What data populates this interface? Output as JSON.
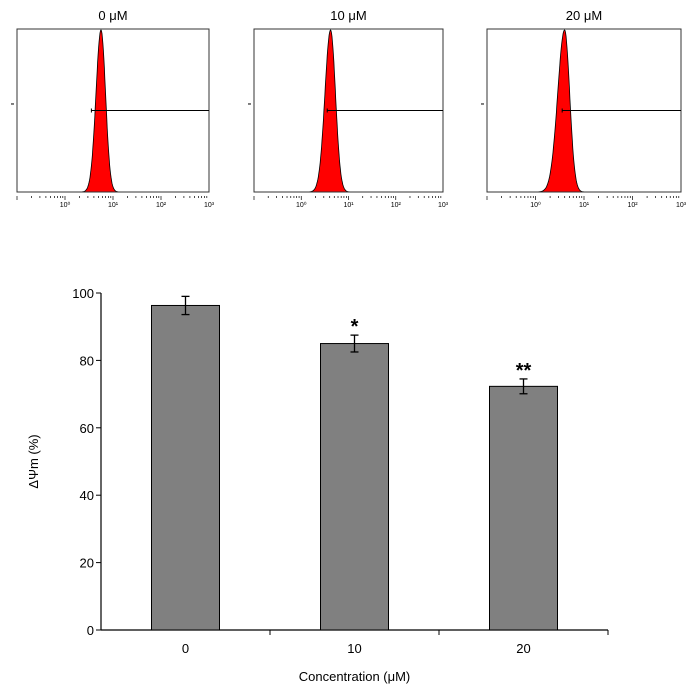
{
  "chart_data": [
    {
      "type": "histogram",
      "panels": [
        {
          "title": "0 μM",
          "xscale": "log",
          "xlim_exponents": [
            -1,
            3
          ],
          "peak_log10": 0.75,
          "width_left": 0.22,
          "width_right": 0.2,
          "gate_log10_start": 0.55,
          "x_tick_labels": [
            "10⁰",
            "10¹",
            "10²",
            "10³"
          ]
        },
        {
          "title": "10 μM",
          "xscale": "log",
          "xlim_exponents": [
            -1,
            3
          ],
          "peak_log10": 0.62,
          "width_left": 0.25,
          "width_right": 0.22,
          "gate_log10_start": 0.55,
          "x_tick_labels": [
            "10⁰",
            "10¹",
            "10²",
            "10³"
          ]
        },
        {
          "title": "20 μM",
          "xscale": "log",
          "xlim_exponents": [
            -1,
            3
          ],
          "peak_log10": 0.6,
          "width_left": 0.3,
          "width_right": 0.22,
          "gate_log10_start": 0.55,
          "x_tick_labels": [
            "10⁰",
            "10¹",
            "10²",
            "10³"
          ]
        }
      ],
      "fill_color": "#ff0000"
    },
    {
      "type": "bar",
      "categories": [
        "0",
        "10",
        "20"
      ],
      "values": [
        96.3,
        85.0,
        72.3
      ],
      "errors": [
        2.7,
        2.5,
        2.2
      ],
      "significance": [
        "",
        "*",
        "**"
      ],
      "xlabel": "Concentration (μM)",
      "ylabel": "ΔΨm (%)",
      "ylim": [
        0,
        100
      ],
      "yticks": [
        0,
        20,
        40,
        60,
        80,
        100
      ],
      "bar_color": "#808080",
      "grid": false
    }
  ]
}
